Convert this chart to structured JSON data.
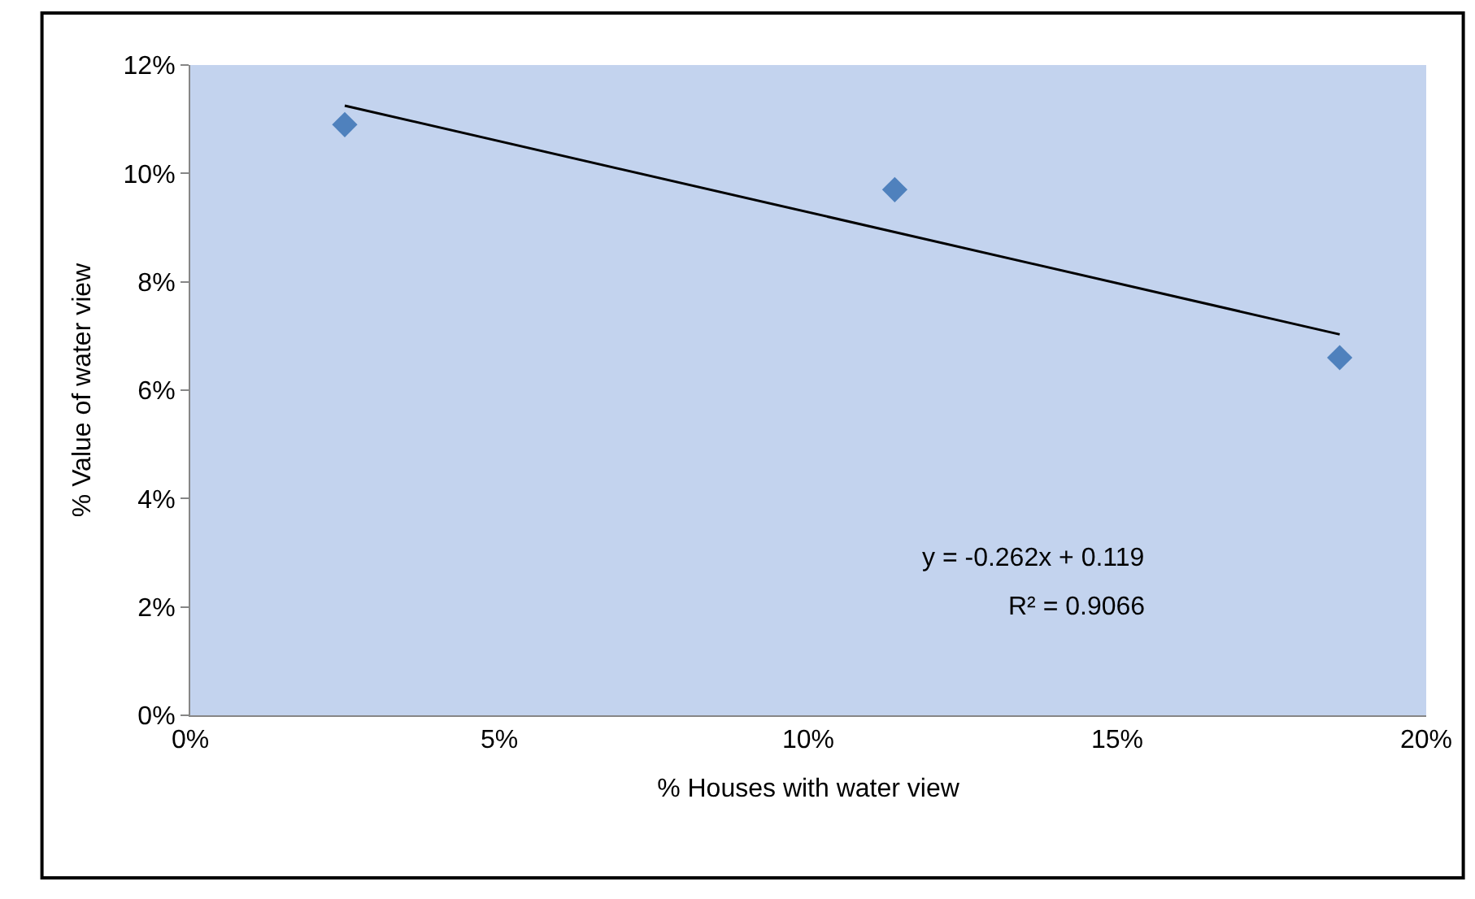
{
  "chart_data": {
    "type": "scatter",
    "xlabel": "% Houses with water view",
    "ylabel": "% Value of water view",
    "series": [
      {
        "color": "#4f81bd",
        "marker": "diamond",
        "x": [
          2.5,
          11.4,
          18.6
        ],
        "values": [
          10.9,
          9.7,
          6.6
        ]
      },
      {
        "type": "line",
        "color": "#000000",
        "marker": "none",
        "x": [
          2.5,
          18.6
        ],
        "values": [
          11.25,
          7.03
        ]
      }
    ],
    "annotations": [
      "y = -0.262x + 0.119",
      "R² = 0.9066"
    ],
    "xlim": [
      0,
      20
    ],
    "xticks": [
      {
        "value": 0,
        "label": "0%"
      },
      {
        "value": 5,
        "label": "5%"
      },
      {
        "value": 10,
        "label": "10%"
      },
      {
        "value": 15,
        "label": "15%"
      },
      {
        "value": 20,
        "label": "20%"
      }
    ],
    "ylim": [
      0,
      12
    ],
    "yticks": [
      {
        "value": 0,
        "label": "0%"
      },
      {
        "value": 2,
        "label": "2%"
      },
      {
        "value": 4,
        "label": "4%"
      },
      {
        "value": 6,
        "label": "6%"
      },
      {
        "value": 8,
        "label": "8%"
      },
      {
        "value": 10,
        "label": "10%"
      },
      {
        "value": 12,
        "label": "12%"
      }
    ],
    "grid": false,
    "legend": false
  }
}
